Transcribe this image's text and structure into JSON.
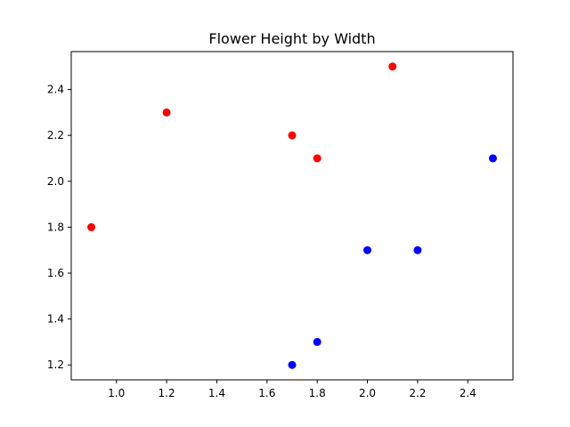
{
  "chart_data": {
    "type": "scatter",
    "title": "Flower Height by Width",
    "xlabel": "",
    "ylabel": "",
    "xlim": [
      0.82,
      2.58
    ],
    "ylim": [
      1.135,
      2.565
    ],
    "x_ticks": [
      1.0,
      1.2,
      1.4,
      1.6,
      1.8,
      2.0,
      2.2,
      2.4
    ],
    "y_ticks": [
      1.2,
      1.4,
      1.6,
      1.8,
      2.0,
      2.2,
      2.4
    ],
    "x_tick_labels": [
      "1.0",
      "1.2",
      "1.4",
      "1.6",
      "1.8",
      "2.0",
      "2.2",
      "2.4"
    ],
    "y_tick_labels": [
      "1.2",
      "1.4",
      "1.6",
      "1.8",
      "2.0",
      "2.2",
      "2.4"
    ],
    "grid": false,
    "series": [
      {
        "color": "#ff0000",
        "points": [
          [
            0.9,
            1.8
          ],
          [
            1.2,
            2.3
          ],
          [
            1.7,
            2.2
          ],
          [
            1.8,
            2.1
          ],
          [
            2.1,
            2.5
          ]
        ]
      },
      {
        "color": "#0000ff",
        "points": [
          [
            1.7,
            1.2
          ],
          [
            1.8,
            1.3
          ],
          [
            2.0,
            1.7
          ],
          [
            2.2,
            1.7
          ],
          [
            2.5,
            2.1
          ]
        ]
      }
    ]
  }
}
